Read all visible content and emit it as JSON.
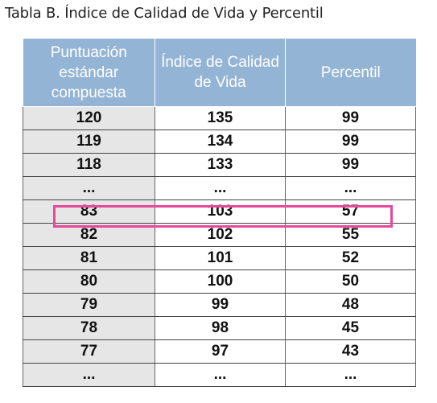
{
  "title": "Tabla B. Índice de Calidad de Vida y Percentil",
  "table": {
    "headers": [
      "Puntuación estándar compuesta",
      "Índice de Calidad de Vida",
      "Percentil"
    ],
    "rows": [
      [
        "120",
        "135",
        "99"
      ],
      [
        "119",
        "134",
        "99"
      ],
      [
        "118",
        "133",
        "99"
      ],
      [
        "...",
        "...",
        "..."
      ],
      [
        "83",
        "103",
        "57"
      ],
      [
        "82",
        "102",
        "55"
      ],
      [
        "81",
        "101",
        "52"
      ],
      [
        "80",
        "100",
        "50"
      ],
      [
        "79",
        "99",
        "48"
      ],
      [
        "78",
        "98",
        "45"
      ],
      [
        "77",
        "97",
        "43"
      ],
      [
        "...",
        "...",
        "..."
      ]
    ],
    "highlighted_row_index": 4
  },
  "colors": {
    "header_background": "#94b4d6",
    "first_column_background": "#e6e6e6",
    "highlight_border": "#e8489a"
  }
}
